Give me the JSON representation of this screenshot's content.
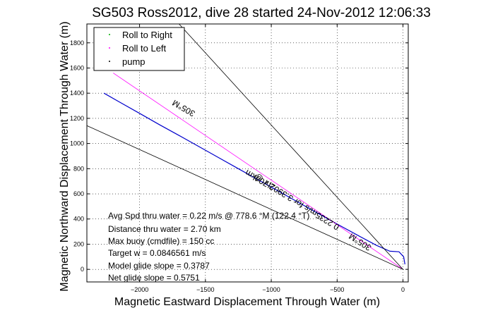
{
  "chart_data": {
    "type": "line",
    "title": "SG503 Ross2012, dive 28 started 24-Nov-2012 12:06:33",
    "xlabel": "Magnetic Eastward Displacement Through Water (m)",
    "ylabel": "Magnetic Northward Displacement Through Water (m)",
    "xlim": [
      -2400,
      40
    ],
    "ylim": [
      -100,
      1950
    ],
    "grid": true,
    "x_ticks": [
      -2000,
      -1500,
      -1000,
      -500,
      0
    ],
    "y_ticks": [
      0,
      200,
      400,
      600,
      800,
      1000,
      1200,
      1400,
      1600,
      1800
    ],
    "legend": {
      "placement": "top-left",
      "entries": [
        {
          "label": "Roll to Right",
          "color": "#00b000"
        },
        {
          "label": "Roll to Left",
          "color": "#ff00ff"
        },
        {
          "label": "pump",
          "color": "#000000"
        }
      ]
    },
    "series": [
      {
        "color": "#0000cc",
        "x": [
          -2270,
          -2150,
          -2000,
          -1850,
          -1700,
          -1550,
          -1400,
          -1250,
          -1100,
          -950,
          -800,
          -650,
          -500,
          -350,
          -200,
          -100,
          -30,
          5,
          15
        ],
        "y": [
          1400,
          1328,
          1240,
          1150,
          1064,
          976,
          888,
          800,
          712,
          624,
          536,
          448,
          360,
          274,
          190,
          144,
          140,
          100,
          40
        ]
      },
      {
        "color": "#ff00ff",
        "x": [
          -2200,
          -1800,
          -1400,
          -1000,
          -600,
          -200,
          0
        ],
        "y": [
          1560,
          1277,
          993,
          709,
          426,
          142,
          0
        ]
      },
      {
        "color": "#000000",
        "x": [
          -2400,
          -1800,
          -1200,
          -600,
          0
        ],
        "y": [
          1142,
          857,
          571,
          286,
          0
        ]
      },
      {
        "color": "#000000",
        "x": [
          -1700,
          -1200,
          -700,
          -200,
          0
        ],
        "y": [
          1950,
          1376,
          803,
          229,
          0
        ]
      }
    ],
    "rotated_labels": [
      "305°M",
      "2.704km",
      "0.2235m/s for 3.3902hr @ ",
      "305°M"
    ],
    "annotations": [
      "Avg Spd thru water = 0.22 m/s @ 778.6 °M (122.4 °T)",
      "Distance thru water = 2.70 km",
      "Max buoy (cmdfile) = 150 cc",
      "Target w = 0.0846561 m/s",
      "Model glide slope = 0.3787",
      "Net glide slope = 0.5751"
    ]
  }
}
